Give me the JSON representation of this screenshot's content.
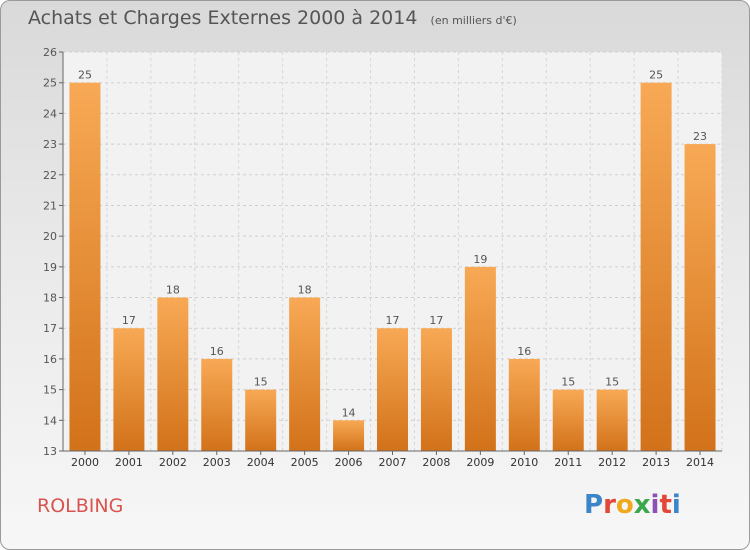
{
  "title": "Achats et Charges Externes 2000 à 2014",
  "unit": "(en milliers d'€)",
  "commune": "ROLBING",
  "logo": "Proxiti",
  "colors": {
    "bar_top": "#f8a955",
    "bar_bottom": "#d2721a",
    "text": "#555555",
    "commune": "#d9534f"
  },
  "chart_data": {
    "type": "bar",
    "categories": [
      "2000",
      "2001",
      "2002",
      "2003",
      "2004",
      "2005",
      "2006",
      "2007",
      "2008",
      "2009",
      "2010",
      "2011",
      "2012",
      "2013",
      "2014"
    ],
    "values": [
      25,
      17,
      18,
      16,
      15,
      18,
      14,
      17,
      17,
      19,
      16,
      15,
      15,
      25,
      23
    ],
    "ylim": [
      13,
      26
    ],
    "yticks": [
      13,
      14,
      15,
      16,
      17,
      18,
      19,
      20,
      21,
      22,
      23,
      24,
      25,
      26
    ],
    "grid": true
  }
}
